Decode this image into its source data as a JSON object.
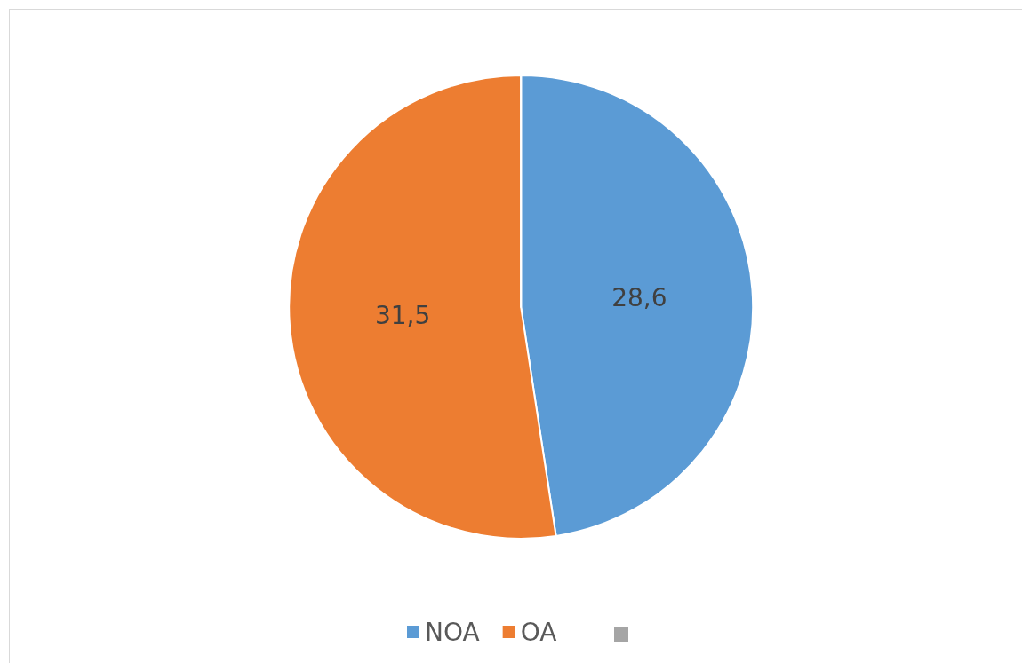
{
  "chart_data": {
    "type": "pie",
    "categories": [
      "NOA",
      "OA",
      null
    ],
    "values": [
      28.6,
      31.5,
      0
    ],
    "colors": [
      "#5b9bd5",
      "#ed7d31",
      "#a5a5a5"
    ],
    "value_labels": [
      "28,6",
      "31,5",
      null
    ],
    "legend": "bottom"
  }
}
